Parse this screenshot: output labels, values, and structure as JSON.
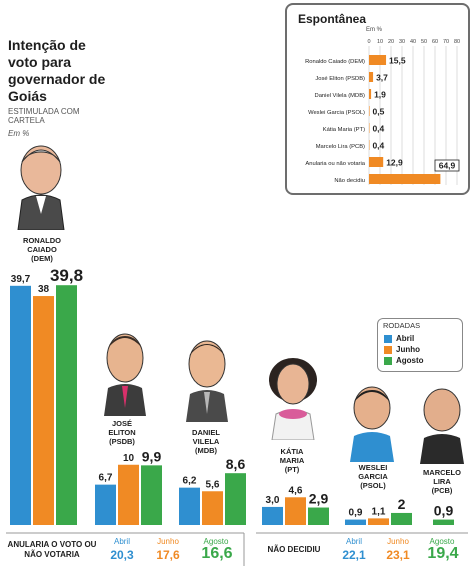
{
  "title": "Intenção de voto para governador de Goiás",
  "subtitle": "ESTIMULADA COM CARTELA",
  "unit": "Em %",
  "colors": {
    "abril": "#2f8fd0",
    "junho": "#f08a24",
    "agosto": "#3aa84a",
    "inset_bar": "#f08a24",
    "frame": "#6d6d6d"
  },
  "legend": {
    "title": "RODADAS",
    "items": [
      "Abril",
      "Junho",
      "Agosto"
    ]
  },
  "chart_data": [
    {
      "type": "bar",
      "title": "Intenção de voto para governador de Goiás",
      "subtitle": "ESTIMULADA COM CARTELA",
      "ylabel": "Em %",
      "categories": [
        "RONALDO CAIADO (DEM)",
        "JOSÉ ELITON (PSDB)",
        "DANIEL VILELA (MDB)",
        "KÁTIA MARIA (PT)",
        "WESLEI GARCIA (PSOL)",
        "MARCELO LIRA (PCB)"
      ],
      "series": [
        {
          "name": "Abril",
          "values": [
            39.7,
            6.7,
            6.2,
            3.0,
            0.9,
            null
          ]
        },
        {
          "name": "Junho",
          "values": [
            38,
            10,
            5.6,
            4.6,
            1.1,
            null
          ]
        },
        {
          "name": "Agosto",
          "values": [
            39.8,
            9.9,
            8.6,
            2.9,
            2,
            0.9
          ]
        }
      ],
      "ylim": [
        0,
        40
      ],
      "legend": "right"
    },
    {
      "type": "bar",
      "title": "Espontânea",
      "ylabel": "Em %",
      "orientation": "horizontal",
      "categories": [
        "Ronaldo Caiado (DEM)",
        "José Eliton (PSDB)",
        "Daniel Vilela (MDB)",
        "Weslei Garcia (PSOL)",
        "Kátia Maria (PT)",
        "Marcelo Lira (PCB)",
        "Anularia ou não votaria",
        "Não decidiu"
      ],
      "values": [
        15.5,
        3.7,
        1.9,
        0.5,
        0.4,
        0.4,
        12.9,
        64.9
      ],
      "xticks": [
        0,
        10,
        20,
        30,
        40,
        50,
        60,
        70,
        80
      ],
      "xlim": [
        0,
        80
      ]
    }
  ],
  "labels": {
    "candidates": [
      {
        "line1": "RONALDO",
        "line2": "CAIADO",
        "party": "(DEM)"
      },
      {
        "line1": "JOSÉ",
        "line2": "ELITON",
        "party": "(PSDB)"
      },
      {
        "line1": "DANIEL",
        "line2": "VILELA",
        "party": "(MDB)"
      },
      {
        "line1": "KÁTIA",
        "line2": "MARIA",
        "party": "(PT)"
      },
      {
        "line1": "WESLEI",
        "line2": "GARCIA",
        "party": "(PSOL)"
      },
      {
        "line1": "MARCELO",
        "line2": "LIRA",
        "party": "(PCB)"
      }
    ],
    "value_text": [
      [
        "39,7",
        "38",
        "39,8"
      ],
      [
        "6,7",
        "10",
        "9,9"
      ],
      [
        "6,2",
        "5,6",
        "8,6"
      ],
      [
        "3,0",
        "4,6",
        "2,9"
      ],
      [
        "0,9",
        "1,1",
        "2"
      ],
      [
        "",
        "",
        "0,9"
      ]
    ],
    "inset_values": [
      "15,5",
      "3,7",
      "1,9",
      "0,5",
      "0,4",
      "0,4",
      "12,9",
      "64,9"
    ]
  },
  "footer": {
    "anularia": {
      "label": "ANULARIA O VOTO OU NÃO VOTARIA",
      "months": [
        "Abril",
        "Junho",
        "Agosto"
      ],
      "values": [
        "20,3",
        "17,6",
        "16,6"
      ]
    },
    "nao_decidiu": {
      "label": "NÃO DECIDIU",
      "months": [
        "Abril",
        "Junho",
        "Agosto"
      ],
      "values": [
        "22,1",
        "23,1",
        "19,4"
      ]
    }
  }
}
